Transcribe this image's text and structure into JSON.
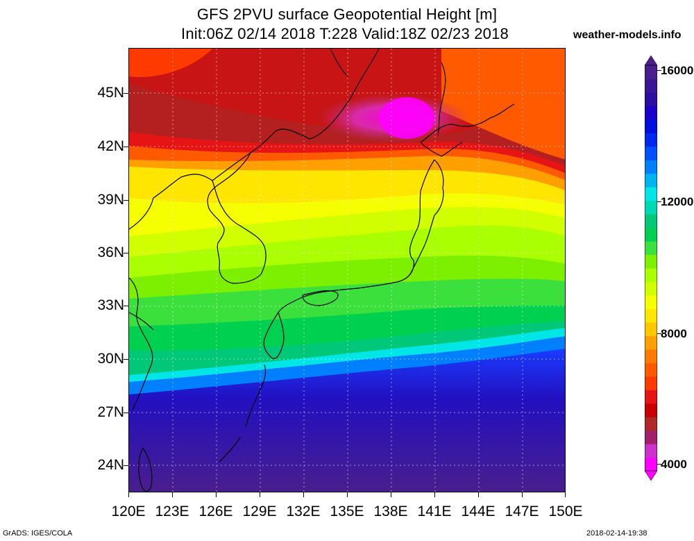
{
  "title_line1": "GFS 2PVU surface Geopotential Height [m]",
  "title_line2": "Init:06Z 02/14 2018 T:228 Valid:18Z 02/23 2018",
  "credit": "weather-models.info",
  "footer_left": "GrADS: IGES/COLA",
  "footer_right": "2018-02-14-19:38",
  "latitude_labels": [
    "45N",
    "42N",
    "39N",
    "36N",
    "33N",
    "30N",
    "27N",
    "24N"
  ],
  "longitude_labels": [
    "120E",
    "123E",
    "126E",
    "129E",
    "132E",
    "135E",
    "138E",
    "141E",
    "144E",
    "147E",
    "150E"
  ],
  "colorbar": {
    "labels": [
      "16000",
      "12000",
      "8000",
      "4000"
    ],
    "colors": [
      "#ff00ff",
      "#cc33cc",
      "#a0206a",
      "#b02828",
      "#c80000",
      "#e61414",
      "#ff3a00",
      "#ff5a00",
      "#ff7a00",
      "#ffa000",
      "#ffc800",
      "#ffe600",
      "#f5ff00",
      "#d2ff00",
      "#aaff00",
      "#7cf000",
      "#3ce03c",
      "#00d050",
      "#00c878",
      "#00d8b4",
      "#00e6e6",
      "#00b4f0",
      "#0080ff",
      "#0050ff",
      "#0028f0",
      "#0010e0",
      "#1a00c8",
      "#2c0fa0",
      "#3a1596",
      "#4a1e8c"
    ]
  }
}
